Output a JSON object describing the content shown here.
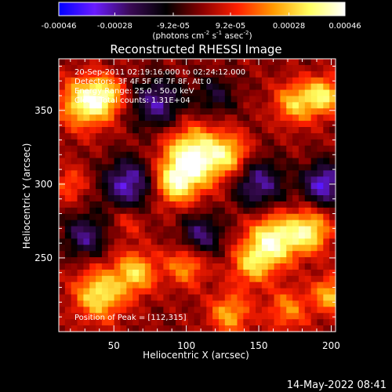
{
  "chart_data": {
    "type": "heatmap",
    "title": "Reconstructed RHESSI Image",
    "xlabel": "Heliocentric X (arcsec)",
    "ylabel": "Heliocentric Y (arcsec)",
    "xlim": [
      12,
      203
    ],
    "ylim": [
      200,
      385
    ],
    "x_ticks": [
      50,
      100,
      150,
      200
    ],
    "y_ticks": [
      250,
      300,
      350
    ],
    "colorbar": {
      "range": [
        -0.00046,
        0.00046
      ],
      "tick_labels": [
        "-0.00046",
        "-0.00028",
        "-9.2e-05",
        "9.2e-05",
        "0.00028",
        "0.00046"
      ],
      "tick_values": [
        -0.00046,
        -0.00028,
        -9.2e-05,
        9.2e-05,
        0.00028,
        0.00046
      ],
      "unit_main": "(photons cm",
      "unit_exp1": "-2",
      "unit_s": " s",
      "unit_exp2": "-1",
      "unit_asec": " asec",
      "unit_exp3": "-2",
      "unit_close": ")",
      "colors": [
        "#0000ff",
        "#6a1cff",
        "#3a0a55",
        "#000000",
        "#8a0000",
        "#ff2000",
        "#ff9a00",
        "#ffff60",
        "#ffffff"
      ]
    },
    "annotations": [
      "20-Sep-2011 02:19:16.000 to 02:24:12.000",
      "Detectors: 3F 4F 5F 6F 7F 8F, Att 0",
      "Energy Range: 25.0 - 50.0 keV",
      "Clean     Total counts: 1.31E+04"
    ],
    "peak_label": "Position of Peak = [112,315]",
    "peak": [
      112,
      315
    ],
    "blobs": [
      {
        "x": 105,
        "y": 318,
        "amp": 1.0,
        "sigma": 14
      },
      {
        "x": 92,
        "y": 300,
        "amp": 0.65,
        "sigma": 10
      },
      {
        "x": 130,
        "y": 320,
        "amp": 0.55,
        "sigma": 10
      },
      {
        "x": 30,
        "y": 355,
        "amp": 0.8,
        "sigma": 12
      },
      {
        "x": 45,
        "y": 360,
        "amp": 0.55,
        "sigma": 9
      },
      {
        "x": 20,
        "y": 300,
        "amp": 0.35,
        "sigma": 8
      },
      {
        "x": 60,
        "y": 275,
        "amp": 0.25,
        "sigma": 8
      },
      {
        "x": 175,
        "y": 355,
        "amp": 0.6,
        "sigma": 10
      },
      {
        "x": 195,
        "y": 360,
        "amp": 0.7,
        "sigma": 9
      },
      {
        "x": 160,
        "y": 262,
        "amp": 0.9,
        "sigma": 12
      },
      {
        "x": 185,
        "y": 268,
        "amp": 0.75,
        "sigma": 10
      },
      {
        "x": 145,
        "y": 245,
        "amp": 0.55,
        "sigma": 10
      },
      {
        "x": 40,
        "y": 225,
        "amp": 0.75,
        "sigma": 12
      },
      {
        "x": 65,
        "y": 240,
        "amp": 0.65,
        "sigma": 10
      },
      {
        "x": 100,
        "y": 245,
        "amp": 0.5,
        "sigma": 10
      },
      {
        "x": 130,
        "y": 212,
        "amp": 0.55,
        "sigma": 10
      },
      {
        "x": 170,
        "y": 215,
        "amp": 0.45,
        "sigma": 10
      },
      {
        "x": 200,
        "y": 225,
        "amp": 0.6,
        "sigma": 9
      },
      {
        "x": 80,
        "y": 355,
        "amp": -0.6,
        "sigma": 12
      },
      {
        "x": 60,
        "y": 300,
        "amp": -0.7,
        "sigma": 12
      },
      {
        "x": 150,
        "y": 300,
        "amp": -0.6,
        "sigma": 12
      },
      {
        "x": 195,
        "y": 300,
        "amp": -0.75,
        "sigma": 10
      },
      {
        "x": 110,
        "y": 265,
        "amp": -0.55,
        "sigma": 10
      },
      {
        "x": 30,
        "y": 265,
        "amp": -0.55,
        "sigma": 10
      },
      {
        "x": 120,
        "y": 360,
        "amp": -0.35,
        "sigma": 10
      }
    ]
  },
  "footer": {
    "timestamp": "14-May-2022 08:41"
  }
}
